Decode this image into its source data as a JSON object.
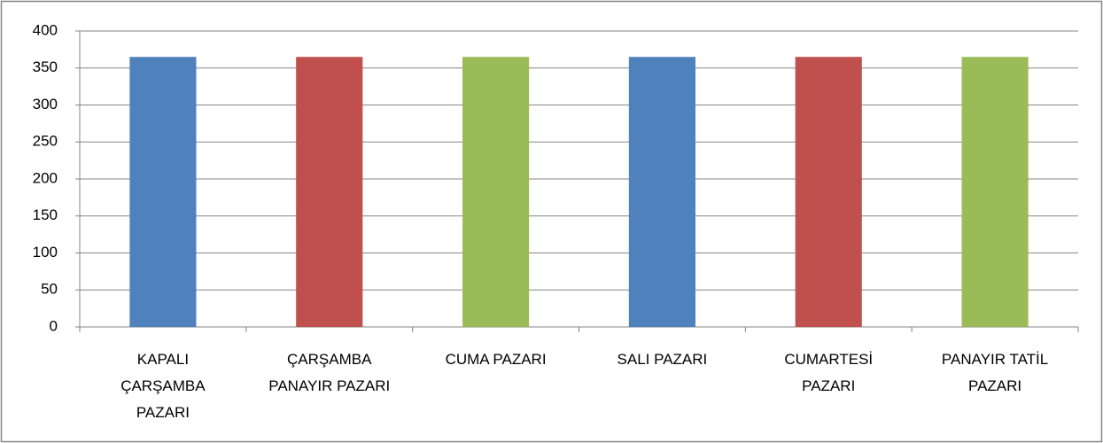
{
  "chart_data": {
    "type": "bar",
    "categories": [
      "KAPALI ÇARŞAMBA PAZARI",
      "ÇARŞAMBA PANAYIR PAZARI",
      "CUMA PAZARI",
      "SALI PAZARI",
      "CUMARTESİ PAZARI",
      "PANAYIR TATİL PAZARI"
    ],
    "values": [
      365,
      365,
      365,
      365,
      365,
      365
    ],
    "colors": [
      "#4f81bd",
      "#c0504d",
      "#9bbb59",
      "#4f81bd",
      "#c0504d",
      "#9bbb59"
    ],
    "ylim": [
      0,
      400
    ],
    "yticks": [
      0,
      50,
      100,
      150,
      200,
      250,
      300,
      350,
      400
    ],
    "grid": true
  }
}
